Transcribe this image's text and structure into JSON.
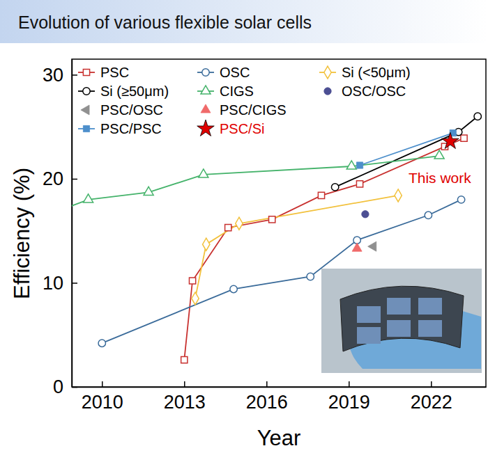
{
  "chart_data": {
    "type": "line",
    "title": "Evolution of various flexible solar cells",
    "x_label": "Year",
    "y_label": "Efficiency (%)",
    "xlim": [
      2008.9,
      2024.0
    ],
    "xticks": [
      2010,
      2013,
      2016,
      2019,
      2022
    ],
    "ylim": [
      0,
      31.5
    ],
    "yticks": [
      0,
      10,
      20,
      30
    ],
    "grid": false,
    "legend": "upper left",
    "annotations": [
      {
        "text": "This work",
        "x": 2022.7,
        "y": 23.6
      }
    ],
    "series": [
      {
        "name": "PSC",
        "color": "#c8312f",
        "marker": "square-open",
        "x": [
          2013.0,
          2013.3,
          2014.6,
          2016.2,
          2018.0,
          2019.4,
          2022.5,
          2023.2
        ],
        "values": [
          2.6,
          10.2,
          15.3,
          16.1,
          18.4,
          19.5,
          23.1,
          23.9
        ]
      },
      {
        "name": "OSC",
        "color": "#3a6b9a",
        "marker": "circle-open",
        "x": [
          2010.0,
          2014.8,
          2017.6,
          2019.3,
          2021.9,
          2023.1
        ],
        "values": [
          4.2,
          9.4,
          10.6,
          14.1,
          16.5,
          18.0
        ]
      },
      {
        "name": "Si (<50μm)",
        "color": "#f2c13c",
        "marker": "diamond-open",
        "x": [
          2013.4,
          2013.8,
          2015.0,
          2020.8
        ],
        "values": [
          8.5,
          13.7,
          15.7,
          18.4
        ]
      },
      {
        "name": "Si (≥50μm)",
        "color": "#000000",
        "marker": "circle-open",
        "x": [
          2018.5,
          2023.0,
          2023.7
        ],
        "values": [
          19.2,
          24.5,
          26.0
        ]
      },
      {
        "name": "CIGS",
        "color": "#45b36b",
        "marker": "triangle-open",
        "x": [
          2008.4,
          2009.5,
          2011.7,
          2013.7,
          2019.1,
          2022.3
        ],
        "values": [
          16.9,
          18.0,
          18.7,
          20.4,
          21.2,
          22.2
        ]
      },
      {
        "name": "OSC/OSC",
        "color": "#4c4f93",
        "marker": "circle",
        "x": [
          2019.6
        ],
        "values": [
          16.6
        ]
      },
      {
        "name": "PSC/OSC",
        "color": "#909090",
        "marker": "triangle-left",
        "x": [
          2019.9
        ],
        "values": [
          13.5
        ]
      },
      {
        "name": "PSC/CIGS",
        "color": "#f06a6a",
        "marker": "triangle",
        "x": [
          2019.3
        ],
        "values": [
          13.3
        ]
      },
      {
        "name": "PSC/PSC",
        "color": "#4d8fcb",
        "marker": "square",
        "x": [
          2019.4,
          2022.8
        ],
        "values": [
          21.3,
          24.4
        ]
      },
      {
        "name": "PSC/Si",
        "color": "#e00000",
        "marker": "star",
        "x": [
          2022.7
        ],
        "values": [
          23.6
        ]
      }
    ]
  }
}
